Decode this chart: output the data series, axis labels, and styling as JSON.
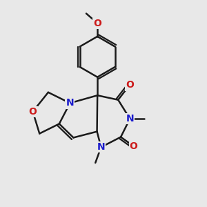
{
  "background_color": "#e8e8e8",
  "bond_color": "#1a1a1a",
  "bond_width": 1.8,
  "atom_colors": {
    "N": "#1a1acc",
    "O": "#cc1a1a",
    "C": "#1a1a1a"
  },
  "font_size_atom": 10.0
}
